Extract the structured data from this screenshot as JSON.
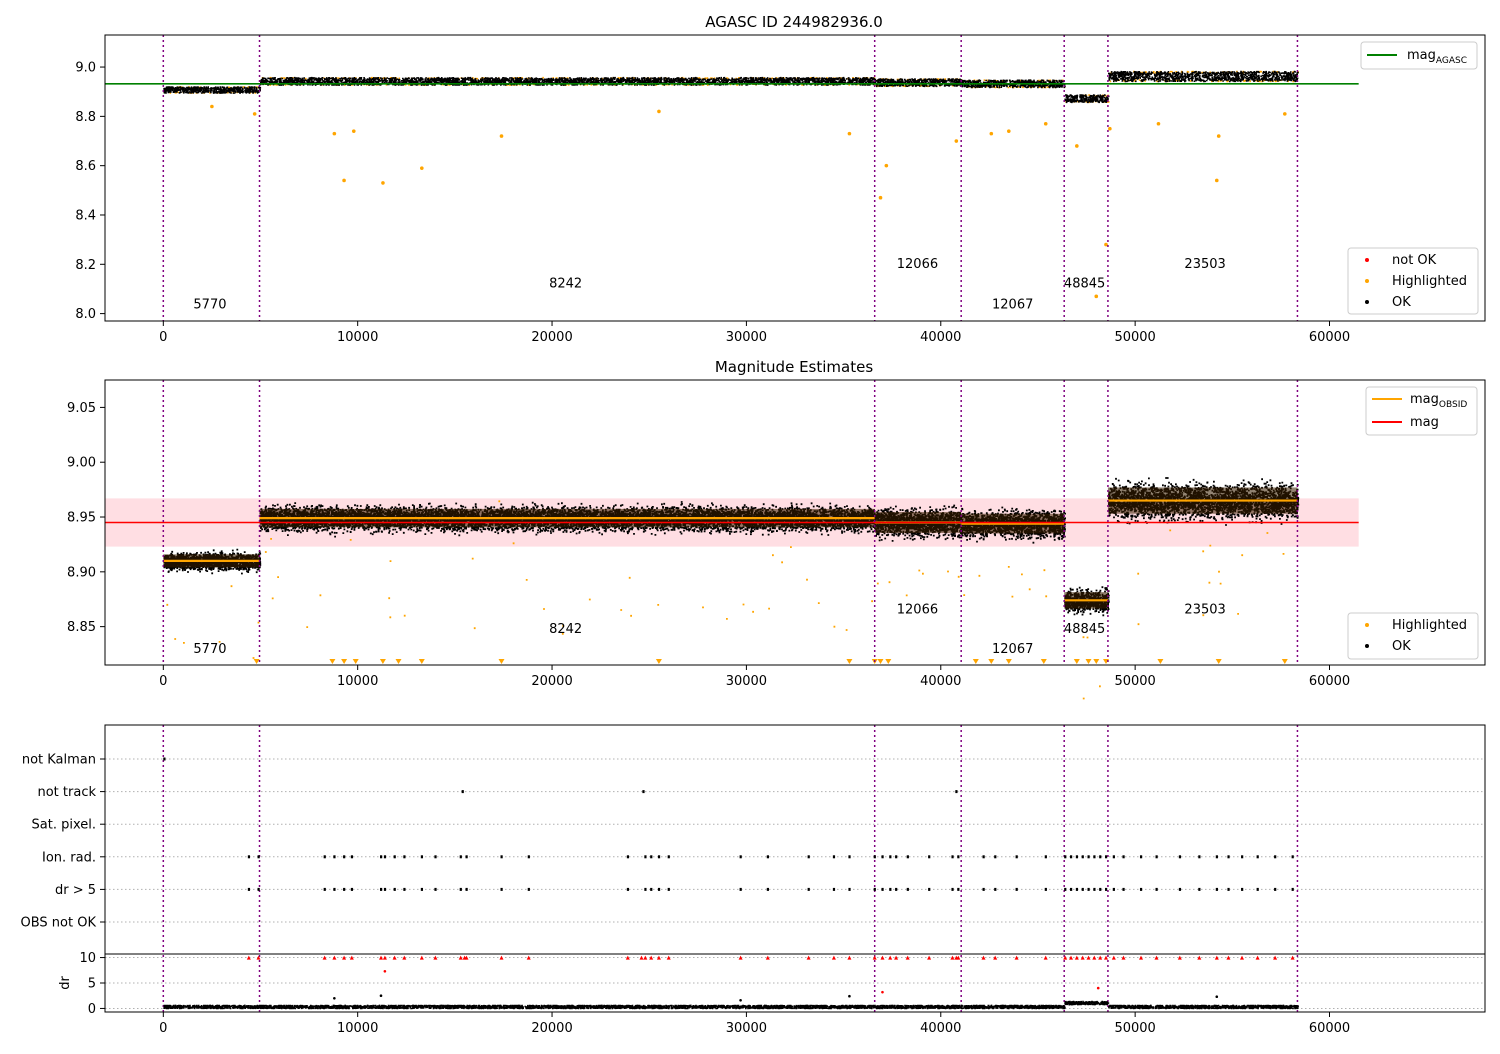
{
  "chart_data": [
    {
      "type": "scatter",
      "title": "AGASC ID 244982936.0",
      "xlim": [
        -3000,
        68000
      ],
      "ylim": [
        7.97,
        9.13
      ],
      "xticks": [
        0,
        10000,
        20000,
        30000,
        40000,
        50000,
        60000
      ],
      "yticks": [
        8.0,
        8.2,
        8.4,
        8.6,
        8.8,
        9.0
      ],
      "ytick_labels": [
        "8.0",
        "8.2",
        "8.4",
        "8.6",
        "8.8",
        "9.0"
      ],
      "boundaries": [
        0,
        4950,
        36600,
        41050,
        46350,
        48600,
        58350
      ],
      "segments": [
        {
          "label": "5770",
          "x": 2400,
          "y": 8.02,
          "start": 0,
          "end": 4950,
          "mean": 8.91,
          "spread": 0.025
        },
        {
          "label": "8242",
          "x": 20700,
          "y": 8.105,
          "start": 4950,
          "end": 36600,
          "mean": 8.945,
          "spread": 0.03
        },
        {
          "label": "12066",
          "x": 38800,
          "y": 8.185,
          "start": 36600,
          "end": 41050,
          "mean": 8.94,
          "spread": 0.03
        },
        {
          "label": "12067",
          "x": 43700,
          "y": 8.02,
          "start": 41050,
          "end": 46350,
          "mean": 8.935,
          "spread": 0.03
        },
        {
          "label": "48845",
          "x": 47400,
          "y": 8.105,
          "start": 46350,
          "end": 48600,
          "mean": 8.875,
          "spread": 0.03
        },
        {
          "label": "23503",
          "x": 53600,
          "y": 8.185,
          "start": 48600,
          "end": 58350,
          "mean": 8.965,
          "spread": 0.04
        }
      ],
      "lines": [
        {
          "name": "mag_AGASC",
          "y": 8.932,
          "x_from": -3000,
          "x_to": 61500,
          "color": "#008000"
        }
      ],
      "highlighted_outliers": [
        [
          2500,
          8.84
        ],
        [
          4700,
          8.81
        ],
        [
          8800,
          8.73
        ],
        [
          9300,
          8.54
        ],
        [
          9800,
          8.74
        ],
        [
          11300,
          8.53
        ],
        [
          13300,
          8.59
        ],
        [
          17400,
          8.72
        ],
        [
          25500,
          8.82
        ],
        [
          35300,
          8.73
        ],
        [
          36900,
          8.47
        ],
        [
          37200,
          8.6
        ],
        [
          40800,
          8.7
        ],
        [
          42600,
          8.73
        ],
        [
          43500,
          8.74
        ],
        [
          45400,
          8.77
        ],
        [
          47000,
          8.68
        ],
        [
          48000,
          8.07
        ],
        [
          48500,
          8.28
        ],
        [
          48700,
          8.75
        ],
        [
          51200,
          8.77
        ],
        [
          54200,
          8.54
        ],
        [
          54300,
          8.72
        ],
        [
          57700,
          8.81
        ]
      ],
      "legend": [
        {
          "label": "not OK",
          "color": "#ff0000"
        },
        {
          "label": "Highlighted",
          "color": "#ffa500"
        },
        {
          "label": "OK",
          "color": "#000000"
        }
      ]
    },
    {
      "type": "scatter",
      "title": "Magnitude Estimates",
      "xlim": [
        -3000,
        68000
      ],
      "ylim": [
        8.815,
        9.075
      ],
      "xticks": [
        0,
        10000,
        20000,
        30000,
        40000,
        50000,
        60000
      ],
      "yticks": [
        8.85,
        8.9,
        8.95,
        9.0,
        9.05
      ],
      "ytick_labels": [
        "8.85",
        "8.90",
        "8.95",
        "9.00",
        "9.05"
      ],
      "boundaries": [
        0,
        4950,
        36600,
        41050,
        46350,
        48600,
        58350
      ],
      "mag_line": {
        "y": 8.945,
        "band": [
          8.923,
          8.967
        ],
        "x_from": -3000,
        "x_to": 61500,
        "color": "#ff0000"
      },
      "segments": [
        {
          "label": "5770",
          "x": 2400,
          "y": 8.826,
          "start": 0,
          "end": 4950,
          "mean": 8.91,
          "spread": 0.02
        },
        {
          "label": "8242",
          "x": 20700,
          "y": 8.844,
          "start": 4950,
          "end": 36600,
          "mean": 8.949,
          "spread": 0.028
        },
        {
          "label": "12066",
          "x": 38800,
          "y": 8.862,
          "start": 36600,
          "end": 41050,
          "mean": 8.945,
          "spread": 0.032
        },
        {
          "label": "12067",
          "x": 43700,
          "y": 8.826,
          "start": 41050,
          "end": 46350,
          "mean": 8.944,
          "spread": 0.03
        },
        {
          "label": "48845",
          "x": 47400,
          "y": 8.844,
          "start": 46350,
          "end": 48600,
          "mean": 8.874,
          "spread": 0.025
        },
        {
          "label": "23503",
          "x": 53600,
          "y": 8.862,
          "start": 48600,
          "end": 58350,
          "mean": 8.965,
          "spread": 0.04
        }
      ],
      "lower_limit_markers_x": [
        4800,
        8700,
        9300,
        9900,
        11300,
        12100,
        13300,
        17400,
        25500,
        35300,
        36600,
        36900,
        37300,
        41800,
        42600,
        43500,
        45300,
        47000,
        47600,
        48000,
        48500,
        51300,
        54300,
        57700
      ],
      "legend_lines": [
        {
          "label": "mag_OBSID",
          "color": "#ffa500"
        },
        {
          "label": "mag",
          "color": "#ff0000"
        }
      ],
      "legend_points": [
        {
          "label": "Highlighted",
          "color": "#ffa500"
        },
        {
          "label": "OK",
          "color": "#000000"
        }
      ]
    },
    {
      "type": "scatter",
      "title": "",
      "xlim": [
        -3000,
        68000
      ],
      "xticks": [
        0,
        10000,
        20000,
        30000,
        40000,
        50000,
        60000
      ],
      "flag_rows": [
        "not Kalman",
        "not track",
        "Sat. pixel.",
        "Ion. rad.",
        "dr > 5",
        "OBS not OK"
      ],
      "flag_points": {
        "not Kalman": [
          50
        ],
        "not track": [
          15400,
          24700,
          40800
        ],
        "Sat. pixel.": [],
        "Ion. rad.": [
          4400,
          4900,
          8300,
          8800,
          9300,
          9700,
          11200,
          11400,
          11900,
          12400,
          13300,
          14000,
          15300,
          15600,
          17400,
          18800,
          23900,
          24800,
          25100,
          25500,
          26000,
          29700,
          31100,
          33200,
          34500,
          35300,
          36600,
          37000,
          37400,
          37700,
          38300,
          39400,
          40600,
          40900,
          42200,
          42800,
          43900,
          45400,
          46400,
          46700,
          47000,
          47300,
          47600,
          47900,
          48200,
          48500,
          48900,
          49400,
          50300,
          51100,
          52300,
          53300,
          54200,
          54800,
          55500,
          56300,
          57200,
          58100
        ]
      },
      "dr_panel": {
        "ylabel": "dr",
        "yticks": [
          0,
          5,
          10
        ],
        "ylim": [
          -0.7,
          10.7
        ],
        "flagged_at_10_x": [
          4400,
          4900,
          8300,
          8800,
          9300,
          9700,
          11200,
          11400,
          11900,
          12400,
          13300,
          14000,
          15300,
          15500,
          15600,
          17400,
          18800,
          23900,
          24600,
          24800,
          25100,
          25500,
          26000,
          29700,
          31100,
          33200,
          34500,
          35300,
          36600,
          37000,
          37400,
          37700,
          38300,
          39400,
          40600,
          40800,
          40900,
          42200,
          42800,
          43900,
          45400,
          46400,
          46700,
          47000,
          47300,
          47600,
          47900,
          48200,
          48500,
          48900,
          49400,
          50300,
          51100,
          52300,
          53300,
          54200,
          54800,
          55500,
          56300,
          57200,
          58100
        ],
        "extra_points": [
          [
            11400,
            7.3
          ],
          [
            37000,
            3.2
          ],
          [
            48100,
            4.0
          ],
          [
            8800,
            2.0
          ],
          [
            11200,
            2.5
          ],
          [
            35300,
            2.4
          ],
          [
            54200,
            2.3
          ],
          [
            29700,
            1.6
          ]
        ]
      }
    }
  ]
}
